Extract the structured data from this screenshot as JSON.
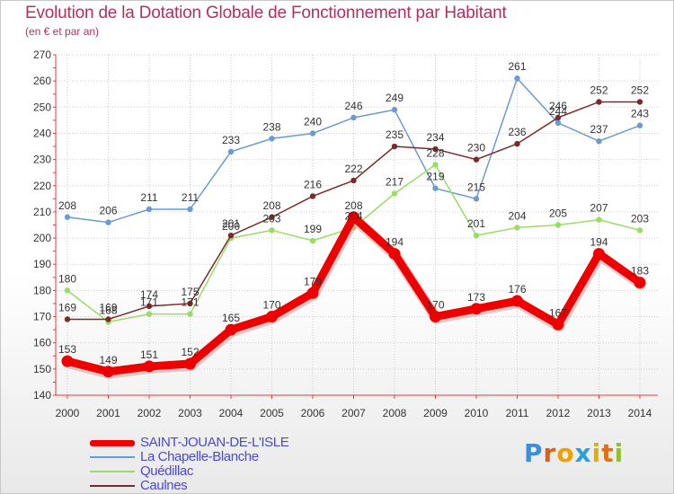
{
  "title": "Evolution de la Dotation Globale de Fonctionnement par Habitant",
  "subtitle": "(en € et par an)",
  "logo": {
    "letters": [
      "P",
      "r",
      "o",
      "x",
      "i",
      "t",
      "i"
    ],
    "colors": [
      "#3a8fd8",
      "#e06010",
      "#f0a000",
      "#2aa0d8",
      "#e0b000",
      "#e07010",
      "#90c030"
    ]
  },
  "chart_data": {
    "type": "line",
    "title": "Evolution de la Dotation Globale de Fonctionnement par Habitant",
    "subtitle": "(en € et par an)",
    "xlabel": "",
    "ylabel": "",
    "ylim": [
      140,
      270
    ],
    "yticks": [
      140,
      150,
      160,
      170,
      180,
      190,
      200,
      210,
      220,
      230,
      240,
      250,
      260,
      270
    ],
    "grid": true,
    "legend_position": "bottom-left",
    "x": [
      "2000",
      "2001",
      "2002",
      "2003",
      "2004",
      "2005",
      "2006",
      "2007",
      "2008",
      "2009",
      "2010",
      "2011",
      "2012",
      "2013",
      "2014"
    ],
    "series": [
      {
        "name": "La Chapelle-Blanche",
        "color": "#6a9ccf",
        "values": [
          208,
          206,
          211,
          211,
          233,
          238,
          240,
          246,
          249,
          219,
          215,
          261,
          244,
          237,
          243
        ],
        "labels": [
          "208",
          "206",
          "211",
          "211",
          "233",
          "238",
          "240",
          "246",
          "249",
          "219",
          "215",
          "261",
          "244",
          "237",
          "243"
        ]
      },
      {
        "name": "Quédillac",
        "color": "#99dd66",
        "values": [
          180,
          168,
          171,
          171,
          200,
          203,
          199,
          204,
          217,
          228,
          201,
          204,
          205,
          207,
          203
        ],
        "labels": [
          "180",
          "168",
          "171",
          "171",
          "200",
          "203",
          "199",
          "204",
          "217",
          "228",
          "201",
          "204",
          "205",
          "207",
          "203"
        ]
      },
      {
        "name": "Caulnes",
        "color": "#7a2a2a",
        "values": [
          169,
          169,
          174,
          175,
          201,
          208,
          216,
          222,
          235,
          234,
          230,
          236,
          246,
          252,
          252
        ],
        "labels": [
          "169",
          "169",
          "174",
          "175",
          "201",
          "208",
          "216",
          "222",
          "235",
          "234",
          "230",
          "236",
          "246",
          "252",
          "252"
        ]
      },
      {
        "name": "SAINT-JOUAN-DE-L'ISLE",
        "color": "#ee0000",
        "values": [
          153,
          149,
          151,
          152,
          165,
          170,
          179,
          208,
          194,
          170,
          173,
          176,
          167,
          194,
          183
        ],
        "labels": [
          "153",
          "149",
          "151",
          "152",
          "165",
          "170",
          "179",
          "208",
          "194",
          "170",
          "173",
          "176",
          "167",
          "194",
          "183"
        ]
      }
    ]
  },
  "legend": [
    {
      "label": "SAINT-JOUAN-DE-L'ISLE",
      "color": "#ee0000",
      "weight": 7
    },
    {
      "label": "La Chapelle-Blanche",
      "color": "#6a9ccf",
      "weight": 2
    },
    {
      "label": "Quédillac",
      "color": "#99dd66",
      "weight": 2
    },
    {
      "label": "Caulnes",
      "color": "#7a2a2a",
      "weight": 2
    }
  ]
}
